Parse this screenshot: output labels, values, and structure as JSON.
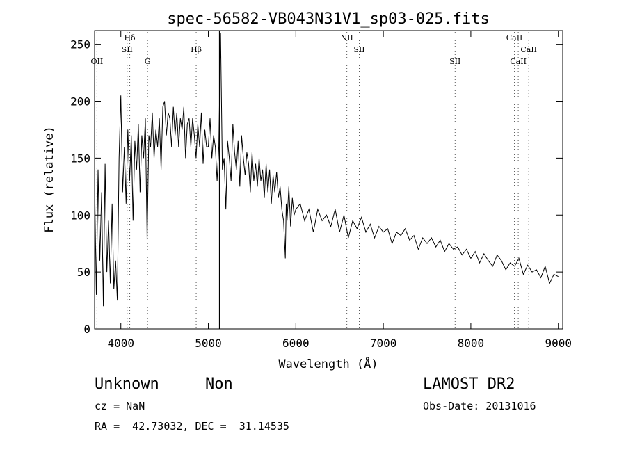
{
  "chart_data": {
    "type": "line",
    "title": "spec-56582-VB043N31V1_sp03-025.fits",
    "xlabel": "Wavelength (Å)",
    "ylabel": "Flux (relative)",
    "xlim": [
      3700,
      9050
    ],
    "ylim": [
      0,
      262
    ],
    "xticks": [
      4000,
      5000,
      6000,
      7000,
      8000,
      9000
    ],
    "yticks": [
      0,
      50,
      100,
      150,
      200,
      250
    ],
    "grid": false,
    "series": [
      {
        "x": [
          3700,
          3720,
          3740,
          3760,
          3780,
          3800,
          3820,
          3840,
          3860,
          3880,
          3900,
          3920,
          3940,
          3960,
          3980,
          4000,
          4020,
          4040,
          4060,
          4080,
          4100,
          4120,
          4140,
          4160,
          4180,
          4200,
          4220,
          4240,
          4260,
          4280,
          4300,
          4320,
          4340,
          4360,
          4380,
          4400,
          4420,
          4440,
          4460,
          4480,
          4500,
          4520,
          4540,
          4560,
          4580,
          4600,
          4620,
          4640,
          4660,
          4680,
          4700,
          4720,
          4740,
          4760,
          4780,
          4800,
          4820,
          4840,
          4860,
          4880,
          4900,
          4920,
          4940,
          4960,
          4980,
          5000,
          5020,
          5040,
          5060,
          5080,
          5100,
          5120,
          5140,
          5160,
          5180,
          5200,
          5220,
          5240,
          5260,
          5280,
          5300,
          5320,
          5340,
          5360,
          5380,
          5400,
          5420,
          5440,
          5460,
          5480,
          5500,
          5520,
          5540,
          5560,
          5580,
          5600,
          5620,
          5640,
          5660,
          5680,
          5700,
          5720,
          5740,
          5760,
          5780,
          5800,
          5820,
          5840,
          5860,
          5880,
          5890,
          5900,
          5920,
          5940,
          5960,
          5980,
          6000,
          6050,
          6100,
          6150,
          6200,
          6250,
          6300,
          6350,
          6400,
          6450,
          6500,
          6550,
          6600,
          6650,
          6700,
          6750,
          6800,
          6850,
          6900,
          6950,
          7000,
          7050,
          7100,
          7150,
          7200,
          7250,
          7300,
          7350,
          7400,
          7450,
          7500,
          7550,
          7600,
          7650,
          7700,
          7750,
          7800,
          7850,
          7900,
          7950,
          8000,
          8050,
          8100,
          8150,
          8200,
          8250,
          8300,
          8350,
          8400,
          8450,
          8500,
          8550,
          8600,
          8650,
          8700,
          8750,
          8800,
          8850,
          8900,
          8950,
          9000
        ],
        "y": [
          130,
          30,
          140,
          60,
          120,
          20,
          145,
          50,
          95,
          40,
          110,
          35,
          60,
          25,
          150,
          205,
          120,
          160,
          110,
          175,
          130,
          170,
          95,
          165,
          140,
          180,
          120,
          170,
          150,
          185,
          78,
          170,
          160,
          190,
          150,
          175,
          160,
          185,
          140,
          195,
          200,
          170,
          190,
          185,
          160,
          195,
          170,
          190,
          160,
          185,
          175,
          195,
          150,
          180,
          185,
          160,
          185,
          170,
          150,
          180,
          160,
          190,
          145,
          175,
          160,
          160,
          185,
          150,
          170,
          160,
          130,
          160,
          260,
          140,
          150,
          105,
          165,
          150,
          130,
          180,
          155,
          140,
          165,
          125,
          170,
          150,
          135,
          155,
          145,
          120,
          155,
          130,
          145,
          125,
          150,
          130,
          140,
          115,
          145,
          120,
          140,
          110,
          135,
          120,
          138,
          115,
          125,
          105,
          95,
          62,
          110,
          95,
          125,
          90,
          115,
          100,
          105,
          110,
          95,
          105,
          85,
          105,
          95,
          100,
          90,
          105,
          85,
          100,
          80,
          95,
          88,
          98,
          85,
          92,
          80,
          90,
          85,
          88,
          75,
          85,
          82,
          88,
          78,
          82,
          70,
          80,
          75,
          80,
          72,
          78,
          68,
          75,
          70,
          72,
          65,
          70,
          62,
          68,
          58,
          66,
          60,
          55,
          65,
          60,
          52,
          58,
          55,
          62,
          48,
          56,
          50,
          52,
          45,
          55,
          40,
          48,
          46
        ]
      },
      {
        "name": "spike",
        "x": [
          5130,
          5130
        ],
        "y": [
          0,
          262
        ]
      }
    ],
    "line_markers": [
      {
        "label": "OII",
        "x": 3727
      },
      {
        "label": "Hδ",
        "x": 4102
      },
      {
        "label": "SII",
        "x": 4072
      },
      {
        "label": "G",
        "x": 4305
      },
      {
        "label": "Hβ",
        "x": 4861
      },
      {
        "label": "NII",
        "x": 6583
      },
      {
        "label": "SII",
        "x": 6725
      },
      {
        "label": "SII",
        "x": 7820
      },
      {
        "label": "CaII",
        "x": 8498
      },
      {
        "label": "CaII",
        "x": 8542
      },
      {
        "label": "CaII",
        "x": 8662
      }
    ]
  },
  "info": {
    "class": "Unknown",
    "subclass": "Non",
    "survey": "LAMOST DR2",
    "cz": "cz = NaN",
    "obs_date": "Obs-Date: 20131016",
    "coords": "RA =  42.73032, DEC =  31.14535"
  }
}
